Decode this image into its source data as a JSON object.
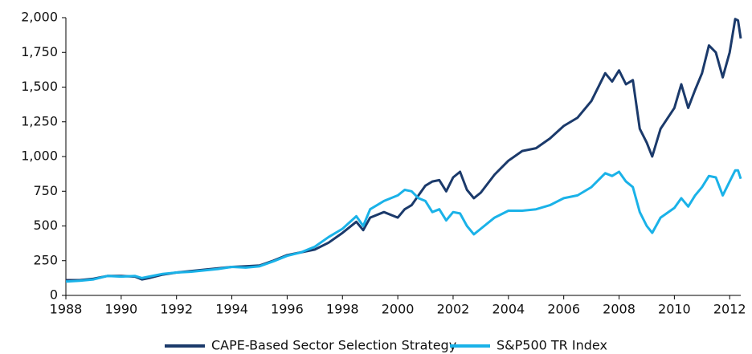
{
  "chart_data": {
    "type": "line",
    "x": [
      1988,
      1988.5,
      1989,
      1989.5,
      1990,
      1990.5,
      1990.75,
      1991,
      1991.5,
      1992,
      1992.5,
      1993,
      1993.5,
      1994,
      1994.5,
      1995,
      1995.5,
      1996,
      1996.5,
      1997,
      1997.5,
      1998,
      1998.5,
      1998.75,
      1999,
      1999.5,
      2000,
      2000.25,
      2000.5,
      2000.75,
      2001,
      2001.25,
      2001.5,
      2001.75,
      2002,
      2002.25,
      2002.5,
      2002.75,
      2003,
      2003.5,
      2004,
      2004.5,
      2005,
      2005.5,
      2006,
      2006.5,
      2007,
      2007.5,
      2007.75,
      2008,
      2008.25,
      2008.5,
      2008.75,
      2009,
      2009.2,
      2009.5,
      2010,
      2010.25,
      2010.5,
      2010.75,
      2011,
      2011.25,
      2011.5,
      2011.75,
      2012,
      2012.2,
      2012.3,
      2012.4
    ],
    "series": [
      {
        "name": "CAPE-Based Sector Selection Strategy",
        "color": "#1b3a6b",
        "values": [
          110,
          110,
          120,
          140,
          140,
          135,
          115,
          125,
          150,
          165,
          175,
          185,
          195,
          205,
          210,
          215,
          250,
          290,
          310,
          330,
          380,
          450,
          530,
          470,
          560,
          600,
          560,
          620,
          650,
          720,
          790,
          820,
          830,
          750,
          850,
          890,
          760,
          700,
          740,
          870,
          970,
          1040,
          1060,
          1130,
          1220,
          1280,
          1400,
          1600,
          1540,
          1620,
          1520,
          1550,
          1200,
          1100,
          1000,
          1200,
          1350,
          1520,
          1350,
          1480,
          1600,
          1800,
          1750,
          1570,
          1750,
          1990,
          1980,
          1850
        ]
      },
      {
        "name": "S&P500 TR Index",
        "color": "#1ab2e8",
        "values": [
          100,
          105,
          115,
          140,
          135,
          140,
          125,
          135,
          155,
          165,
          170,
          180,
          190,
          205,
          200,
          210,
          245,
          285,
          310,
          350,
          420,
          480,
          570,
          500,
          620,
          680,
          720,
          760,
          750,
          700,
          680,
          600,
          620,
          540,
          600,
          590,
          500,
          440,
          480,
          560,
          610,
          610,
          620,
          650,
          700,
          720,
          780,
          880,
          860,
          890,
          820,
          780,
          600,
          500,
          450,
          560,
          630,
          700,
          640,
          720,
          780,
          860,
          850,
          720,
          820,
          900,
          900,
          840
        ]
      }
    ],
    "xlim": [
      1988,
      2012.4
    ],
    "xticks": [
      1988,
      1990,
      1992,
      1994,
      1996,
      1998,
      2000,
      2002,
      2004,
      2006,
      2008,
      2010,
      2012
    ],
    "ylim": [
      0,
      2000
    ],
    "yticks": [
      0,
      250,
      500,
      750,
      {
        "value": 1000,
        "label": "1,000"
      },
      {
        "value": 1250,
        "label": "1,250"
      },
      {
        "value": 1500,
        "label": "1,500"
      },
      {
        "value": 1750,
        "label": "1,750"
      },
      {
        "value": 2000,
        "label": "2,000"
      }
    ],
    "grid": false,
    "legend": "bottom"
  }
}
